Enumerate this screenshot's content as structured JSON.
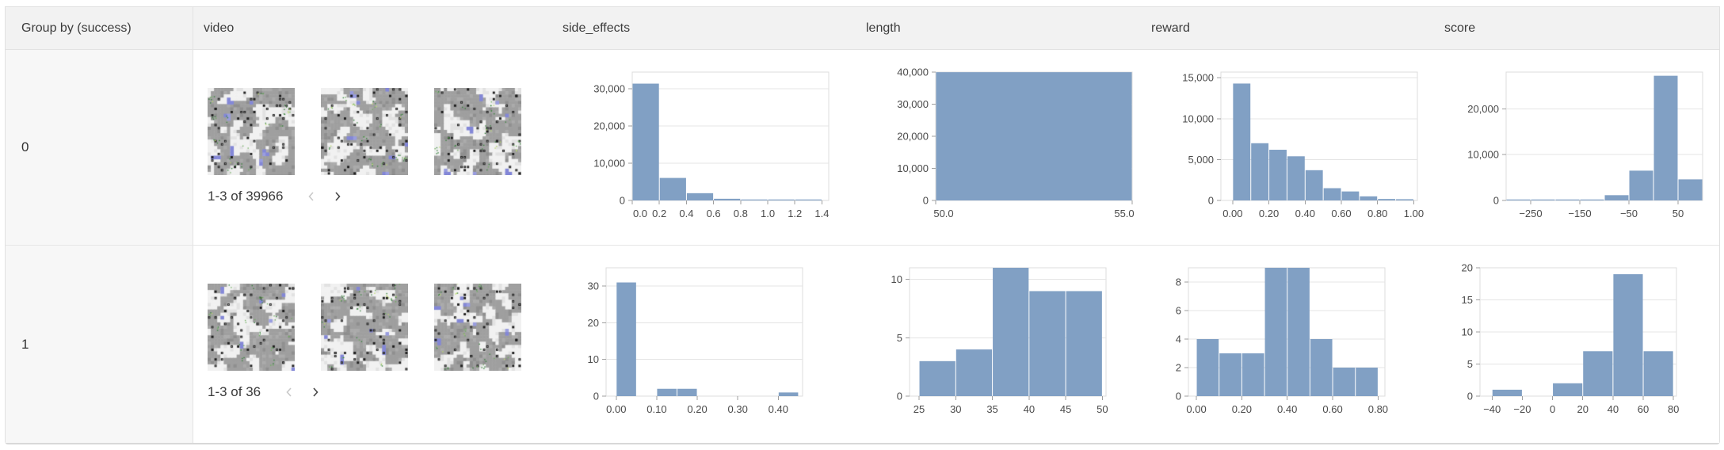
{
  "colors": {
    "histogram_bar": "#81a0c4",
    "header_bg": "#f2f2f2",
    "group_column_bg": "#f7f7f7",
    "panel_border": "#e0e0e0",
    "grid_line": "#e4e4e4",
    "tick_label": "#4a4a4a",
    "chevron_disabled": "#c9c9c9",
    "chevron_enabled": "#474747"
  },
  "header": {
    "columns": [
      "Group by (success)",
      "video",
      "side_effects",
      "length",
      "reward",
      "score"
    ]
  },
  "rows": [
    {
      "group": "0",
      "video": {
        "pagination": "1-3 of 39966",
        "thumbnails": 3,
        "prev_icon": "chevron-left-icon",
        "prev_enabled": false,
        "next_icon": "chevron-right-icon",
        "next_enabled": true
      }
    },
    {
      "group": "1",
      "video": {
        "pagination": "1-3 of 36",
        "thumbnails": 3,
        "prev_icon": "chevron-left-icon",
        "prev_enabled": false,
        "next_icon": "chevron-right-icon",
        "next_enabled": true
      }
    }
  ],
  "chart_data": [
    {
      "type": "bar",
      "row_group": "0",
      "column": "side_effects",
      "bin_start": 0,
      "bin_width": 0.2,
      "counts": [
        31400,
        6050,
        1950,
        450,
        80,
        30,
        6
      ],
      "xdomain": [
        0,
        1.45
      ],
      "xtick_values": [
        0,
        0.2,
        0.4,
        0.6,
        0.8,
        1.0,
        1.2,
        1.4
      ],
      "xtick_labels": [
        "0.0",
        "0.2",
        "0.4",
        "0.6",
        "0.8",
        "1.0",
        "1.2",
        "1.4"
      ],
      "ytick_values": [
        0,
        10000,
        20000,
        30000
      ],
      "ytick_labels": [
        "0",
        "10,000",
        "20,000",
        "30,000"
      ],
      "ylim": [
        0,
        34500
      ],
      "grid": true
    },
    {
      "type": "bar",
      "row_group": "0",
      "column": "length",
      "bin_start": 50,
      "bin_width": 5,
      "counts": [
        39966
      ],
      "xdomain": [
        50,
        55
      ],
      "xtick_values": [
        50,
        55
      ],
      "xtick_labels": [
        "50.0",
        "55.0"
      ],
      "ytick_values": [
        0,
        10000,
        20000,
        30000,
        40000
      ],
      "ytick_labels": [
        "0",
        "10,000",
        "20,000",
        "30,000",
        "40,000"
      ],
      "ylim": [
        0,
        40000
      ],
      "grid": true
    },
    {
      "type": "bar",
      "row_group": "0",
      "column": "reward",
      "bin_start": 0,
      "bin_width": 0.1,
      "counts": [
        14300,
        7000,
        6200,
        5400,
        3700,
        1500,
        1100,
        500,
        180,
        150
      ],
      "xdomain": [
        -0.065,
        1.02
      ],
      "xtick_values": [
        0,
        0.2,
        0.4,
        0.6,
        0.8,
        1.0
      ],
      "xtick_labels": [
        "0.00",
        "0.20",
        "0.40",
        "0.60",
        "0.80",
        "1.00"
      ],
      "ytick_values": [
        0,
        5000,
        10000,
        15000
      ],
      "ytick_labels": [
        "0",
        "5,000",
        "10,000",
        "15,000"
      ],
      "ylim": [
        0,
        15700
      ],
      "grid": true
    },
    {
      "type": "bar",
      "row_group": "0",
      "column": "score",
      "bin_start": -300,
      "bin_width": 50,
      "counts": [
        70,
        100,
        150,
        200,
        1150,
        6500,
        27200,
        4600
      ],
      "xdomain": [
        -300,
        100
      ],
      "xtick_values": [
        -250,
        -150,
        -50,
        50
      ],
      "xtick_labels": [
        "−250",
        "−150",
        "−50",
        "50"
      ],
      "ytick_values": [
        0,
        10000,
        20000
      ],
      "ytick_labels": [
        "0",
        "10,000",
        "20,000"
      ],
      "ylim": [
        0,
        28000
      ],
      "grid": true
    },
    {
      "type": "bar",
      "row_group": "1",
      "column": "side_effects",
      "bin_start": 0,
      "bin_width": 0.05,
      "counts": [
        31,
        0,
        2,
        2,
        0,
        0,
        0,
        0,
        1
      ],
      "xdomain": [
        -0.025,
        0.46
      ],
      "xtick_values": [
        0,
        0.1,
        0.2,
        0.3,
        0.4
      ],
      "xtick_labels": [
        "0.00",
        "0.10",
        "0.20",
        "0.30",
        "0.40"
      ],
      "ytick_values": [
        0,
        10,
        20,
        30
      ],
      "ytick_labels": [
        "0",
        "10",
        "20",
        "30"
      ],
      "ylim": [
        0,
        35
      ],
      "grid": true
    },
    {
      "type": "bar",
      "row_group": "1",
      "column": "length",
      "bin_start": 25,
      "bin_width": 5,
      "counts": [
        3,
        4,
        11,
        9,
        9
      ],
      "xdomain": [
        23.7,
        50.5
      ],
      "xtick_values": [
        25,
        30,
        35,
        40,
        45,
        50
      ],
      "xtick_labels": [
        "25",
        "30",
        "35",
        "40",
        "45",
        "50"
      ],
      "ytick_values": [
        0,
        5,
        10
      ],
      "ytick_labels": [
        "0",
        "5",
        "10"
      ],
      "ylim": [
        0,
        11
      ],
      "grid": true
    },
    {
      "type": "bar",
      "row_group": "1",
      "column": "reward",
      "bin_start": 0,
      "bin_width": 0.1,
      "counts": [
        4,
        3,
        3,
        9,
        9,
        4,
        2,
        2
      ],
      "xdomain": [
        -0.035,
        0.83
      ],
      "xtick_values": [
        0,
        0.2,
        0.4,
        0.6,
        0.8
      ],
      "xtick_labels": [
        "0.00",
        "0.20",
        "0.40",
        "0.60",
        "0.80"
      ],
      "ytick_values": [
        0,
        2,
        4,
        6,
        8
      ],
      "ytick_labels": [
        "0",
        "2",
        "4",
        "6",
        "8"
      ],
      "ylim": [
        0,
        9
      ],
      "grid": true
    },
    {
      "type": "bar",
      "row_group": "1",
      "column": "score",
      "bin_start": -40,
      "bin_width": 20,
      "counts": [
        1,
        0,
        2,
        7,
        19,
        7
      ],
      "xdomain": [
        -48,
        82
      ],
      "xtick_values": [
        -40,
        -20,
        0,
        20,
        40,
        60,
        80
      ],
      "xtick_labels": [
        "−40",
        "−20",
        "0",
        "20",
        "40",
        "60",
        "80"
      ],
      "ytick_values": [
        0,
        5,
        10,
        15,
        20
      ],
      "ytick_labels": [
        "0",
        "5",
        "10",
        "15",
        "20"
      ],
      "ylim": [
        0,
        20
      ],
      "grid": true
    }
  ]
}
